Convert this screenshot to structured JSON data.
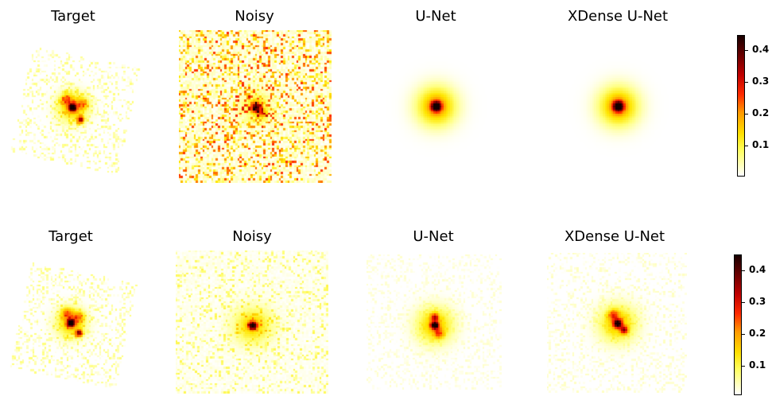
{
  "rows": [
    {
      "titles": [
        "Target",
        "Noisy",
        "U-Net",
        "XDense U-Net"
      ],
      "colorbar_ticks": [
        "0.1",
        "0.2",
        "0.3",
        "0.4"
      ]
    },
    {
      "titles": [
        "Target",
        "Noisy",
        "U-Net",
        "XDense U-Net"
      ],
      "colorbar_ticks": [
        "0.1",
        "0.2",
        "0.3",
        "0.4"
      ]
    }
  ],
  "colormap": "hot_r",
  "colorbar_range": [
    0,
    0.45
  ]
}
